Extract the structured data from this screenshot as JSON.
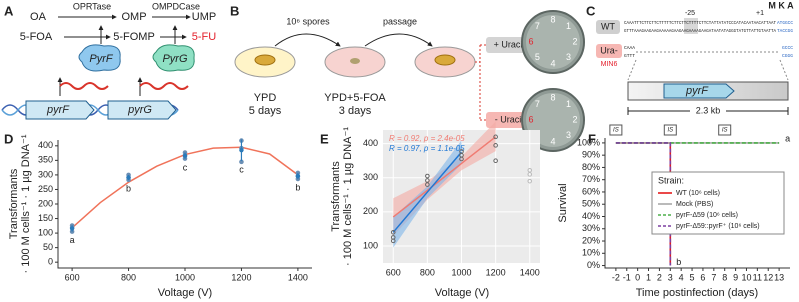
{
  "panels": [
    "A",
    "B",
    "C",
    "D",
    "E",
    "F"
  ],
  "panel_a": {
    "substrates": [
      "OA",
      "5-FOA"
    ],
    "enzyme_1": "OPRTase",
    "intermediates": [
      "OMP",
      "5-FOMP"
    ],
    "enzyme_2": "OMPDCase",
    "products": [
      "UMP",
      "5-FU"
    ],
    "proteins": [
      "PyrF",
      "PyrG"
    ],
    "genes": [
      "pyrF",
      "pyrG"
    ]
  },
  "panel_b": {
    "inoculum": "10⁶ spores",
    "transfer": "passage",
    "plates": [
      {
        "medium": "YPD",
        "time": "5 days"
      },
      {
        "medium": "YPD+5-FOA",
        "time": "3 days"
      }
    ],
    "conditions": [
      "+ Uracil",
      "- Uracil"
    ],
    "plate_labels": [
      [
        "1",
        "2",
        "3",
        "4",
        "5",
        "6",
        "7",
        "8"
      ],
      [
        "1",
        "2",
        "3",
        "4",
        "5",
        "6",
        "7",
        "8"
      ]
    ]
  },
  "panel_c": {
    "strains": [
      "WT",
      "Ura-"
    ],
    "isolate": "MIN6",
    "positions": [
      "-25",
      "+1"
    ],
    "residues": "M K A",
    "wt_sequence": [
      [
        "CAAATTTCTTCTTCTTTTTCTTCTTCTTTTCTTCTATTATATCCCATACAATAACATTAAT",
        "ATGGCC"
      ],
      [
        "GTTTAAAGAAGAAGAAAAAGAAGAAGAAAAGAAGATAATATAGGGTATGTTATTGTAATTA",
        "TACCGG"
      ]
    ],
    "mutant_sequence": [
      [
        "CAAA",
        "GCCC"
      ],
      [
        "GTTT",
        "CGGG"
      ]
    ],
    "gene": "pyrF",
    "length": "2.3 kb"
  },
  "chart_data": [
    {
      "type": "scatter",
      "x_label": "Voltage (V)",
      "y_label": [
        "Transformants",
        "· 100 M  cells⁻¹ · 1 µg DNA⁻¹"
      ],
      "xlim": [
        550,
        1450
      ],
      "xticks": [
        600,
        800,
        1000,
        1200,
        1400
      ],
      "ylim": [
        -20,
        420
      ],
      "yticks": [
        0,
        50,
        100,
        150,
        200,
        250,
        300,
        350,
        400
      ],
      "points": {
        "x": [
          600,
          600,
          600,
          800,
          800,
          800,
          1000,
          1000,
          1000,
          1200,
          1200,
          1200,
          1400,
          1400,
          1400
        ],
        "values": [
          105,
          118,
          126,
          283,
          291,
          300,
          356,
          366,
          377,
          345,
          392,
          418,
          286,
          296,
          307
        ],
        "color": "#6b8fb5"
      },
      "means": {
        "x": [
          600,
          800,
          1000,
          1200,
          1400
        ],
        "values": [
          116,
          291,
          366,
          385,
          296
        ],
        "sd": [
          11,
          9,
          11,
          37,
          11
        ],
        "letters": [
          "a",
          "b",
          "c",
          "c",
          "b"
        ],
        "color": "#2b7bba"
      },
      "fit": {
        "x": [
          600,
          700,
          800,
          900,
          1000,
          1100,
          1200,
          1300,
          1400
        ],
        "values": [
          118,
          205,
          275,
          330,
          370,
          392,
          395,
          372,
          300
        ],
        "color": "#f0735a"
      }
    },
    {
      "type": "scatter",
      "x_label": "Voltage (V)",
      "y_label": [
        "Transformants",
        "· 100 M  cells⁻¹ · 1 µg DNA⁻¹"
      ],
      "xlim": [
        540,
        1460
      ],
      "xticks": [
        600,
        800,
        1000,
        1200,
        1400
      ],
      "ylim": [
        50,
        440
      ],
      "yticks": [
        100,
        200,
        300,
        400
      ],
      "grid": true,
      "background": "#ebebeb",
      "points": {
        "x": [
          600,
          600,
          600,
          800,
          800,
          800,
          1000,
          1000,
          1000,
          1200,
          1200,
          1200
        ],
        "values": [
          115,
          125,
          140,
          280,
          292,
          305,
          355,
          366,
          377,
          350,
          395,
          420
        ],
        "color": "#666666"
      },
      "excluded_points": {
        "x": [
          1400,
          1400,
          1400
        ],
        "values": [
          290,
          310,
          322
        ],
        "color": "#bbbbbb"
      },
      "fits": [
        {
          "x": [
            600,
            800,
            1000,
            1200
          ],
          "values": [
            185,
            263,
            342,
            420
          ],
          "upper": [
            240,
            290,
            362,
            465
          ],
          "lower": [
            130,
            236,
            322,
            378
          ],
          "color": "#f07b72",
          "band_color": "#f4aaa4",
          "label": "R = 0.92, p = 2.4e-05"
        },
        {
          "x": [
            600,
            800,
            1000
          ],
          "values": [
            140,
            258,
            375
          ],
          "upper": [
            185,
            275,
            410
          ],
          "lower": [
            95,
            240,
            340
          ],
          "color": "#1f77d4",
          "band_color": "#7fb5ea",
          "label": "R = 0.97, p = 1.1e-05"
        }
      ]
    },
    {
      "type": "line",
      "x_label": "Time postinfection (days)",
      "y_label": "Survival",
      "xlim": [
        -3,
        14
      ],
      "xticks": [
        -2,
        -1,
        0,
        1,
        2,
        3,
        4,
        5,
        6,
        7,
        8,
        9,
        10,
        11,
        12,
        13
      ],
      "ylim": [
        -2,
        104
      ],
      "yticks": [
        {
          "value": 0,
          "label": "0%"
        },
        {
          "value": 10,
          "label": "10%"
        },
        {
          "value": 20,
          "label": "20%"
        },
        {
          "value": 30,
          "label": "30%"
        },
        {
          "value": 40,
          "label": "40%"
        },
        {
          "value": 50,
          "label": "50%"
        },
        {
          "value": 60,
          "label": "60%"
        },
        {
          "value": 70,
          "label": "70%"
        },
        {
          "value": 80,
          "label": "80%"
        },
        {
          "value": 90,
          "label": "90%"
        },
        {
          "value": 100,
          "label": "100%"
        }
      ],
      "legend_title": "Strain:",
      "legend": "right",
      "series": [
        {
          "name": "WT (10⁶ cells)",
          "color": "#e41a1c",
          "dashed": false,
          "x": [
            -2,
            3,
            3
          ],
          "values": [
            100,
            100,
            0
          ]
        },
        {
          "name": "Mock (PBS)",
          "color": "#a8a8a8",
          "dashed": false,
          "x": [
            -2,
            13
          ],
          "values": [
            100,
            100
          ]
        },
        {
          "name": "pyrF-Δ59 (10⁶ cells)",
          "color": "#4daf4a",
          "dashed": true,
          "x": [
            -2,
            13
          ],
          "values": [
            100,
            100
          ]
        },
        {
          "name": "pyrF-Δ59::pyrF⁺ (10⁶ cells)",
          "color": "#7b3fa0",
          "dashed": true,
          "x": [
            -2,
            3,
            3
          ],
          "values": [
            100,
            100,
            0
          ]
        }
      ],
      "treatment": {
        "label": "IS",
        "x": [
          -2,
          3,
          8
        ]
      },
      "annotations": [
        "a",
        "b"
      ]
    }
  ]
}
